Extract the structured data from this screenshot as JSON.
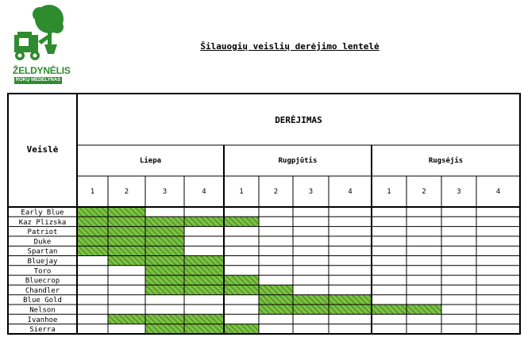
{
  "logo": {
    "name": "ŽELDYNĖLIS",
    "sub": "ROKŲ MEDELYNAS"
  },
  "title": "Šilauogių veislių derėjimo lentelė",
  "table": {
    "header_variety": "Veislė",
    "header_fruiting": "DERĖJIMAS",
    "months": [
      "Liepa",
      "Rugpjūtis",
      "Rugsėjis"
    ],
    "weeks": [
      "1",
      "2",
      "3",
      "4",
      "1",
      "2",
      "3",
      "4",
      "1",
      "2",
      "3",
      "4"
    ],
    "varieties": [
      {
        "name": "Early Blue",
        "weeks": [
          1,
          2
        ]
      },
      {
        "name": "Kaz Plizska",
        "weeks": [
          1,
          2,
          3,
          4,
          5
        ]
      },
      {
        "name": "Patriot",
        "weeks": [
          1,
          2,
          3
        ]
      },
      {
        "name": "Duke",
        "weeks": [
          1,
          2,
          3
        ]
      },
      {
        "name": "Spartan",
        "weeks": [
          1,
          2,
          3
        ]
      },
      {
        "name": "Bluejay",
        "weeks": [
          2,
          3,
          4
        ]
      },
      {
        "name": "Toro",
        "weeks": [
          3,
          4
        ]
      },
      {
        "name": "Bluecrop",
        "weeks": [
          3,
          4,
          5
        ]
      },
      {
        "name": "Chandler",
        "weeks": [
          3,
          4,
          5,
          6
        ]
      },
      {
        "name": "Blue Gold",
        "weeks": [
          6,
          7,
          8
        ]
      },
      {
        "name": "Nelson",
        "weeks": [
          6,
          7,
          8,
          9,
          10
        ]
      },
      {
        "name": "Ivanhoe",
        "weeks": [
          2,
          3,
          4
        ]
      },
      {
        "name": "Sierra",
        "weeks": [
          3,
          4,
          5
        ]
      }
    ]
  },
  "colors": {
    "fill": "#7cc142",
    "hatch": "#2f6e1a",
    "border": "#000000",
    "brand": "#2e8b2e"
  }
}
